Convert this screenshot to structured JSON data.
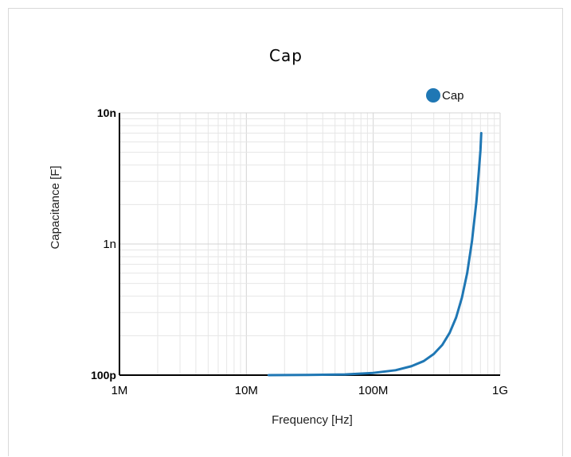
{
  "chart_data": {
    "type": "line",
    "title": "Cap",
    "xlabel": "Frequency [Hz]",
    "ylabel": "Capacitance [F]",
    "xscale": "log",
    "yscale": "log",
    "xlim": [
      1000000,
      1000000000
    ],
    "ylim": [
      1e-10,
      1e-08
    ],
    "x_ticks": [
      {
        "value": 1000000,
        "label": "1M"
      },
      {
        "value": 10000000,
        "label": "10M"
      },
      {
        "value": 100000000,
        "label": "100M"
      },
      {
        "value": 1000000000,
        "label": "1G"
      }
    ],
    "y_ticks": [
      {
        "value": 1e-10,
        "label": "100p",
        "bold": true
      },
      {
        "value": 1e-09,
        "label": "1n",
        "bold": false
      },
      {
        "value": 1e-08,
        "label": "10n",
        "bold": true
      }
    ],
    "grid": true,
    "legend": {
      "position": "top-right"
    },
    "series": [
      {
        "name": "Cap",
        "color": "#1f77b4",
        "x": [
          15000000,
          30000000,
          60000000,
          100000000,
          150000000,
          200000000,
          250000000,
          300000000,
          350000000,
          400000000,
          450000000,
          500000000,
          550000000,
          600000000,
          650000000,
          680000000,
          700000000,
          710000000
        ],
        "y": [
          1e-10,
          1.003e-10,
          1.013e-10,
          1.04e-10,
          1.09e-10,
          1.17e-10,
          1.28e-10,
          1.45e-10,
          1.7e-10,
          2.1e-10,
          2.75e-10,
          3.9e-10,
          6e-10,
          1.05e-09,
          2.1e-09,
          3.6e-09,
          5.2e-09,
          7e-09
        ]
      }
    ]
  }
}
